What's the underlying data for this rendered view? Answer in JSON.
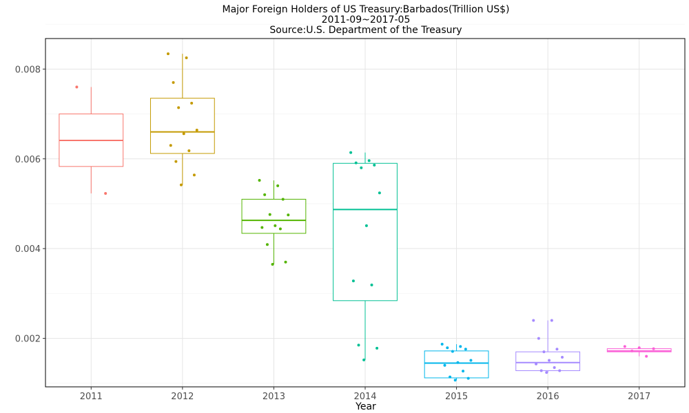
{
  "chart_data": {
    "type": "box",
    "title": "Major Foreign Holders of US Treasury:Barbados(Trillion US$)",
    "subtitle": "2011-09~2017-05",
    "source": "Source:U.S. Department of the Treasury",
    "xlabel": "Year",
    "ylabel": "",
    "categories": [
      "2011",
      "2012",
      "2013",
      "2014",
      "2015",
      "2016",
      "2017"
    ],
    "ylim": [
      0.00092,
      0.00868
    ],
    "yticks": [
      0.002,
      0.004,
      0.006,
      0.008
    ],
    "ytick_labels": [
      "0.002",
      "0.004",
      "0.006",
      "0.008"
    ],
    "grid": true,
    "legend": "none",
    "series": [
      {
        "category": "2011",
        "color": "#F8766D",
        "min": 0.00523,
        "q1": 0.00583,
        "median": 0.00641,
        "q3": 0.007,
        "max": 0.0076,
        "points": [
          0.0076,
          0.00523
        ]
      },
      {
        "category": "2012",
        "color": "#C49A00",
        "min": 0.00542,
        "q1": 0.00612,
        "median": 0.0066,
        "q3": 0.00735,
        "max": 0.00834,
        "points": [
          0.00834,
          0.00825,
          0.0077,
          0.00724,
          0.00714,
          0.00664,
          0.00656,
          0.0063,
          0.00618,
          0.00594,
          0.00564,
          0.00542
        ]
      },
      {
        "category": "2013",
        "color": "#53B400",
        "min": 0.00365,
        "q1": 0.00434,
        "median": 0.00463,
        "q3": 0.0051,
        "max": 0.00552,
        "points": [
          0.00552,
          0.0054,
          0.0052,
          0.0051,
          0.00476,
          0.00475,
          0.00451,
          0.00447,
          0.00444,
          0.00409,
          0.0037,
          0.00365
        ]
      },
      {
        "category": "2014",
        "color": "#00C094",
        "min": 0.00152,
        "q1": 0.00284,
        "median": 0.00487,
        "q3": 0.0059,
        "max": 0.00614,
        "points": [
          0.00614,
          0.00596,
          0.00591,
          0.00586,
          0.0058,
          0.00524,
          0.00451,
          0.00328,
          0.00319,
          0.00185,
          0.00178,
          0.00152
        ]
      },
      {
        "category": "2015",
        "color": "#00B6EB",
        "min": 0.00107,
        "q1": 0.00112,
        "median": 0.00145,
        "q3": 0.00172,
        "max": 0.00187,
        "points": [
          0.00187,
          0.00182,
          0.00179,
          0.00176,
          0.00171,
          0.00151,
          0.00146,
          0.0014,
          0.00127,
          0.00114,
          0.00111,
          0.00107
        ]
      },
      {
        "category": "2016",
        "color": "#A58AFF",
        "min": 0.00124,
        "q1": 0.00128,
        "median": 0.00146,
        "q3": 0.0017,
        "max": 0.0024,
        "points": [
          0.0024,
          0.0024,
          0.002,
          0.00176,
          0.0017,
          0.00158,
          0.00151,
          0.00143,
          0.00135,
          0.00128,
          0.00128,
          0.00124
        ]
      },
      {
        "category": "2017",
        "color": "#FB61D7",
        "min": 0.0016,
        "q1": 0.0017,
        "median": 0.00172,
        "q3": 0.00177,
        "max": 0.00182,
        "points": [
          0.00182,
          0.00179,
          0.00177,
          0.00172,
          0.0016
        ]
      }
    ]
  }
}
